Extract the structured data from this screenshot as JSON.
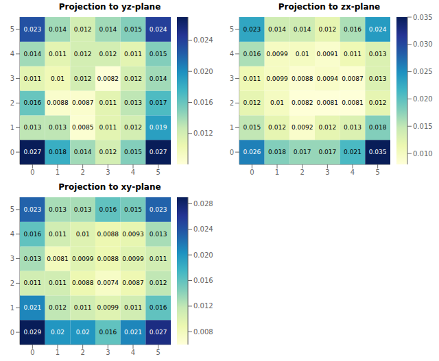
{
  "chart_data": [
    {
      "type": "heatmap",
      "title": "Projection to yz-plane",
      "values": [
        [
          0.027,
          0.018,
          0.014,
          0.012,
          0.015,
          0.027
        ],
        [
          0.013,
          0.013,
          0.0085,
          0.011,
          0.012,
          0.019
        ],
        [
          0.016,
          0.0088,
          0.0087,
          0.011,
          0.013,
          0.017
        ],
        [
          0.011,
          0.01,
          0.012,
          0.0082,
          0.012,
          0.014
        ],
        [
          0.014,
          0.011,
          0.012,
          0.012,
          0.011,
          0.015
        ],
        [
          0.023,
          0.014,
          0.012,
          0.014,
          0.015,
          0.024
        ]
      ],
      "xlim": [
        -0.5,
        5.5
      ],
      "xticks": [
        0,
        1,
        2,
        3,
        4,
        5
      ],
      "ylim": [
        -0.5,
        5.5
      ],
      "yticks": [
        0,
        1,
        2,
        3,
        4,
        5
      ],
      "colorbar_range": [
        0.008,
        0.027
      ],
      "colorbar_ticks": [
        0.012,
        0.016,
        {
          "value": 0.02,
          "label": "0.020"
        },
        0.024
      ],
      "color": "YlGnBu",
      "data_labels": true,
      "grid": false
    },
    {
      "type": "heatmap",
      "title": "Projection to zx-plane",
      "values": [
        [
          0.026,
          0.018,
          0.017,
          0.017,
          0.021,
          0.035
        ],
        [
          0.015,
          0.012,
          0.0092,
          0.012,
          0.013,
          0.018
        ],
        [
          0.012,
          0.01,
          0.0082,
          0.0081,
          0.0081,
          0.012
        ],
        [
          0.011,
          0.0099,
          0.0088,
          0.0094,
          0.0087,
          0.013
        ],
        [
          0.016,
          0.0099,
          0.01,
          0.0091,
          0.011,
          0.013
        ],
        [
          0.023,
          0.014,
          0.014,
          0.012,
          0.016,
          0.024
        ]
      ],
      "xlim": [
        -0.5,
        5.5
      ],
      "xticks": [
        0,
        1,
        2,
        3,
        4,
        5
      ],
      "ylim": [
        -0.5,
        5.5
      ],
      "yticks": [
        0,
        1,
        2,
        3,
        4,
        5
      ],
      "colorbar_range": [
        0.008,
        0.035
      ],
      "colorbar_ticks": [
        {
          "value": 0.01,
          "label": "0.010"
        },
        0.015,
        {
          "value": 0.02,
          "label": "0.020"
        },
        0.025,
        {
          "value": 0.03,
          "label": "0.030"
        },
        0.035
      ],
      "color": "YlGnBu",
      "data_labels": true,
      "grid": false
    },
    {
      "type": "heatmap",
      "title": "Projection to xy-plane",
      "values": [
        [
          0.029,
          0.02,
          0.02,
          0.016,
          0.021,
          0.027
        ],
        [
          0.021,
          0.012,
          0.011,
          0.0099,
          0.011,
          0.016
        ],
        [
          0.011,
          0.011,
          0.0088,
          0.0074,
          0.0087,
          0.012
        ],
        [
          0.013,
          0.0081,
          0.0099,
          0.0088,
          0.0099,
          0.011
        ],
        [
          0.016,
          0.011,
          0.01,
          0.0088,
          0.0093,
          0.013
        ],
        [
          0.023,
          0.013,
          0.013,
          0.016,
          0.015,
          0.023
        ]
      ],
      "xlim": [
        -0.5,
        5.5
      ],
      "xticks": [
        0,
        1,
        2,
        3,
        4,
        5
      ],
      "ylim": [
        -0.5,
        5.5
      ],
      "yticks": [
        0,
        1,
        2,
        3,
        4,
        5
      ],
      "colorbar_range": [
        0.006,
        0.029
      ],
      "colorbar_ticks": [
        0.008,
        0.012,
        0.016,
        {
          "value": 0.02,
          "label": "0.020"
        },
        0.024,
        0.028
      ],
      "color": "YlGnBu",
      "data_labels": true,
      "grid": false
    }
  ]
}
